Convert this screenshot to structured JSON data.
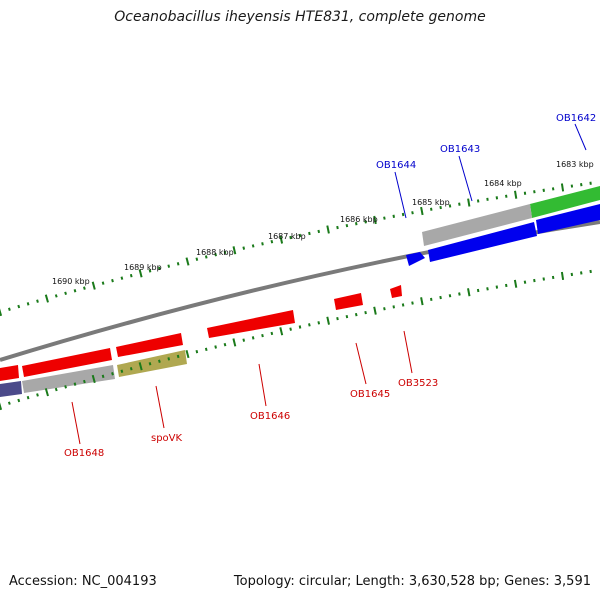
{
  "title": "Oceanobacillus iheyensis HTE831, complete genome",
  "footer": {
    "accession": "Accession: NC_004193",
    "summary": "Topology: circular; Length: 3,630,528 bp; Genes: 3,591"
  },
  "colors": {
    "forward_label": "#0000cc",
    "reverse_label": "#cc0000",
    "backbone": "#777777",
    "tick": "#1a7a1a"
  },
  "position_ticks": [
    "1683 kbp",
    "1684 kbp",
    "1685 kbp",
    "1686 kbp",
    "1687 kbp",
    "1688 kbp",
    "1689 kbp",
    "1690 kbp"
  ],
  "forward_gene_labels": [
    "OB1642",
    "OB1643",
    "OB1644"
  ],
  "reverse_gene_labels": [
    "OB3523",
    "OB1645",
    "OB1646",
    "spoVK",
    "OB1648"
  ]
}
